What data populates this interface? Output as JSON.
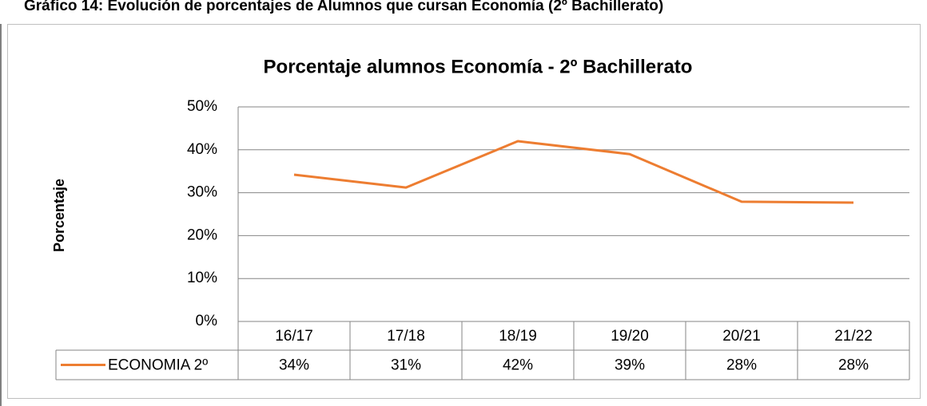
{
  "chart_data": {
    "type": "line",
    "heading": "Gráfico 14: Evolución de porcentajes de Alumnos que cursan Economía (2º Bachillerato)",
    "title": "Porcentaje alumnos Economía - 2º Bachillerato",
    "y_label": "Porcentaje",
    "categories": [
      "16/17",
      "17/18",
      "18/19",
      "19/20",
      "20/21",
      "21/22"
    ],
    "series": [
      {
        "name": "ECONOMIA 2º",
        "color": "#ed7d31",
        "values": [
          34.2,
          31.2,
          42.0,
          39.0,
          27.9,
          27.7
        ],
        "value_labels": [
          "34%",
          "31%",
          "42%",
          "39%",
          "28%",
          "28%"
        ]
      }
    ],
    "ylim": [
      0,
      50
    ],
    "yticks": [
      {
        "value": 0,
        "label": "0%"
      },
      {
        "value": 10,
        "label": "10%"
      },
      {
        "value": 20,
        "label": "20%"
      },
      {
        "value": 30,
        "label": "30%"
      },
      {
        "value": 40,
        "label": "40%"
      },
      {
        "value": 50,
        "label": "50%"
      }
    ],
    "grid": true
  }
}
